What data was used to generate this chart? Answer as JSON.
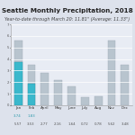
{
  "title": "Seattle Monthly Precipitation, 2018",
  "subtitle": "Year-to-date through March 20: 11.81\" (Average: 11.33\")",
  "months": [
    "Jan",
    "Feb",
    "April",
    "May",
    "June",
    "July",
    "Aug",
    "Nov",
    "Dec"
  ],
  "actual_vals": [
    3.74,
    1.83,
    null,
    null,
    null,
    null,
    null,
    null,
    null
  ],
  "normal_vals": [
    5.57,
    3.53,
    2.77,
    2.16,
    1.64,
    0.72,
    0.78,
    5.62,
    3.48
  ],
  "row1_labels": [
    "3.74",
    "1.83",
    "",
    "",
    "",
    "",
    "",
    "",
    ""
  ],
  "row2_labels": [
    "5.57",
    "3.53",
    "2.77",
    "2.16",
    "1.64",
    "0.72",
    "0.78",
    "5.62",
    "3.48"
  ],
  "actual_color": "#3ab8cc",
  "normal_color": "#b8c4ce",
  "normal_edge": "#a0acb8",
  "background": "#dde2ec",
  "plot_bg": "#e8ecf4",
  "title_color": "#222222",
  "grid_color": "#ffffff",
  "ylim": [
    0,
    7
  ],
  "title_fontsize": 5.2,
  "subtitle_fontsize": 3.5,
  "tick_fontsize": 3.0,
  "label_fontsize": 2.8
}
